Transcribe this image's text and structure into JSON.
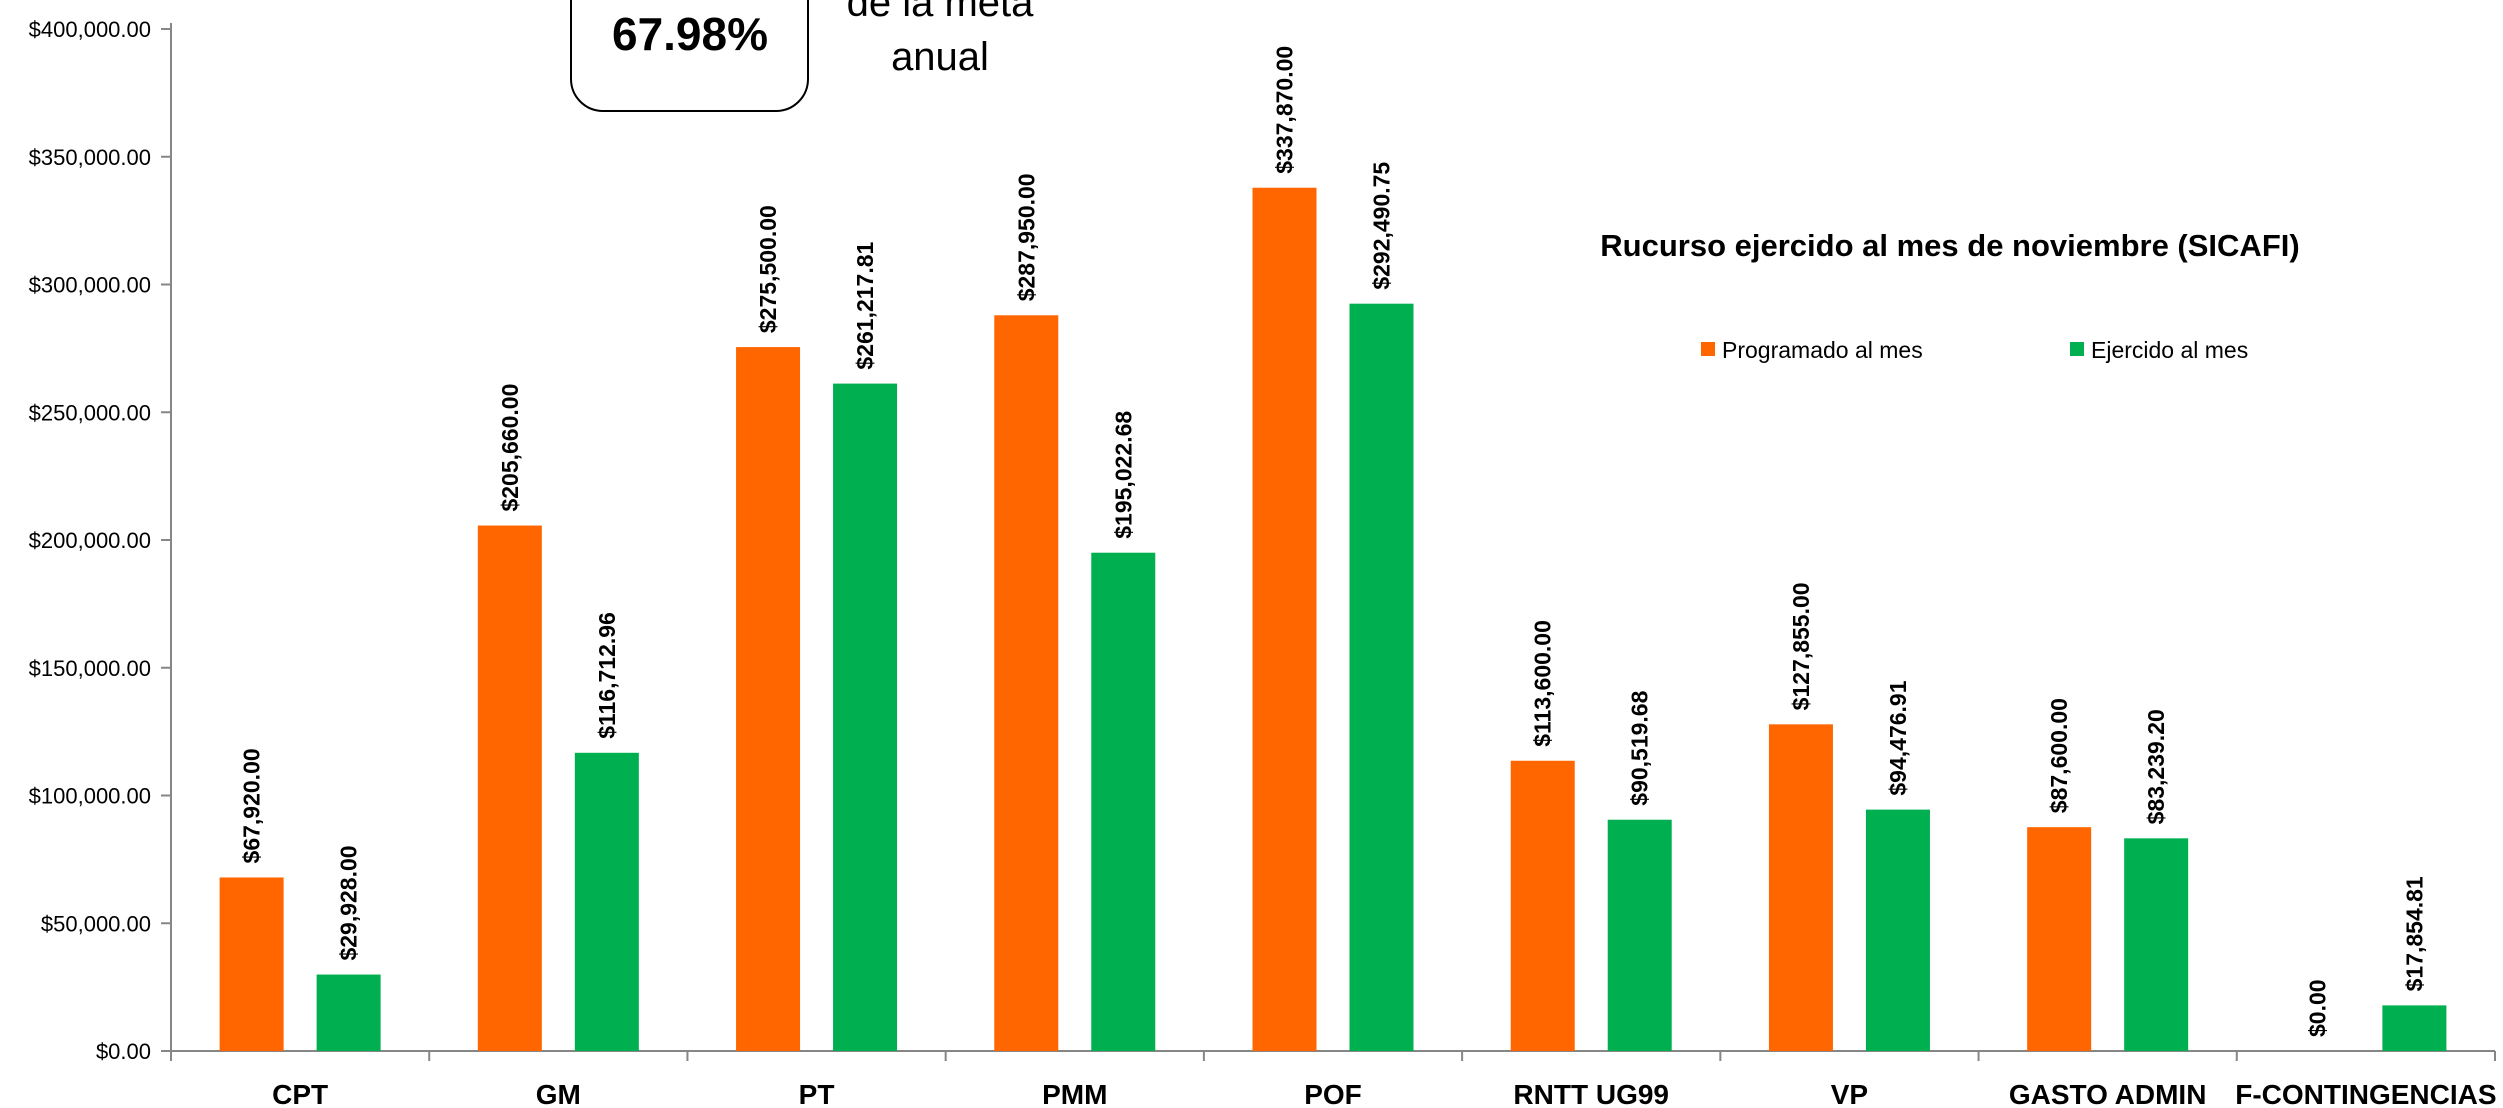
{
  "chart_data": {
    "type": "bar",
    "title": "Rucurso ejercido al mes de noviembre (SICAFI)",
    "categories": [
      "CPT",
      "GM",
      "PT",
      "PMM",
      "POF",
      "RNTT UG99",
      "VP",
      "GASTO ADMIN",
      "F-CONTINGENCIAS"
    ],
    "series": [
      {
        "name": "Programado al mes",
        "color": "#FF6600",
        "values": [
          67920.0,
          205660.0,
          275500.0,
          287950.0,
          337870.0,
          113600.0,
          127855.0,
          87600.0,
          0.0
        ],
        "labels": [
          "$67,920.00",
          "$205,660.00",
          "$275,500.00",
          "$287,950.00",
          "$337,870.00",
          "$113,600.00",
          "$127,855.00",
          "$87,600.00",
          "$0.00"
        ]
      },
      {
        "name": "Ejercido al mes",
        "color": "#00B050",
        "values": [
          29928.0,
          116712.96,
          261217.81,
          195022.68,
          292490.75,
          90519.68,
          94476.91,
          83239.2,
          17854.81
        ],
        "labels": [
          "$29,928.00",
          "$116,712.96",
          "$261,217.81",
          "$195,022.68",
          "$292,490.75",
          "$90,519.68",
          "$94,476.91",
          "$83,239.20",
          "$17,854.81"
        ]
      }
    ],
    "ylim": [
      0,
      400000
    ],
    "yticks": [
      0,
      50000,
      100000,
      150000,
      200000,
      250000,
      300000,
      350000,
      400000
    ],
    "ytick_labels": [
      "$0.00",
      "$50,000.00",
      "$100,000.00",
      "$150,000.00",
      "$200,000.00",
      "$250,000.00",
      "$300,000.00",
      "$350,000.00",
      "$400,000.00"
    ],
    "grid": false,
    "legend_position": "top-right"
  },
  "callout": {
    "value": "67.98%",
    "text_line1": "de la meta",
    "text_line2": "anual"
  }
}
